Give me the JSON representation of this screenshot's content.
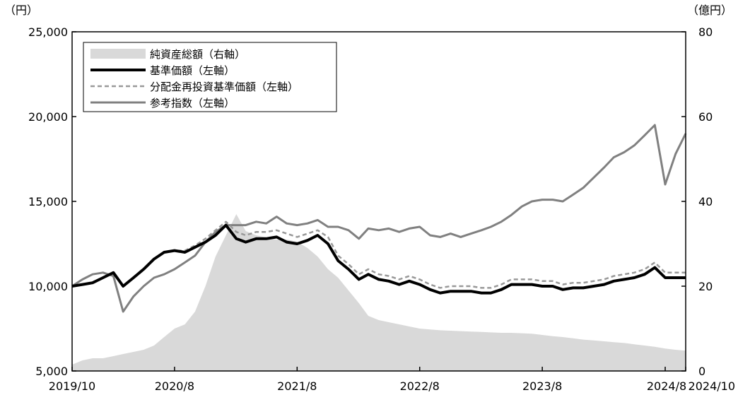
{
  "chart_data": {
    "type": "line",
    "units": {
      "left": "（円）",
      "right": "（億円）"
    },
    "y_left": {
      "range": [
        5000,
        25000
      ],
      "ticks": [
        5000,
        10000,
        15000,
        20000,
        25000
      ],
      "tick_labels": [
        "5,000",
        "10,000",
        "15,000",
        "20,000",
        "25,000"
      ]
    },
    "y_right": {
      "range": [
        0,
        80
      ],
      "ticks": [
        0,
        20,
        40,
        60,
        80
      ],
      "tick_labels": [
        "0",
        "20",
        "40",
        "60",
        "80"
      ]
    },
    "x_ticks": [
      {
        "date": "2019-10",
        "label": "2019/10"
      },
      {
        "date": "2020-08",
        "label": "2020/8"
      },
      {
        "date": "2021-08",
        "label": "2021/8"
      },
      {
        "date": "2022-08",
        "label": "2022/8"
      },
      {
        "date": "2023-08",
        "label": "2023/8"
      },
      {
        "date": "2024-08",
        "label": "2024/8"
      },
      {
        "date": "2024-10",
        "label": "2024/10"
      }
    ],
    "legend_position": "top-left",
    "grid": false,
    "series": [
      {
        "name": "純資産総額（右軸）",
        "type": "area",
        "axis": "right",
        "color": "#d9d9d9",
        "points": [
          [
            "2019-10",
            1.5
          ],
          [
            "2019-11",
            2.5
          ],
          [
            "2019-12",
            3.0
          ],
          [
            "2020-01",
            3.0
          ],
          [
            "2020-02",
            3.5
          ],
          [
            "2020-03",
            4.0
          ],
          [
            "2020-04",
            4.5
          ],
          [
            "2020-05",
            5.0
          ],
          [
            "2020-06",
            6.0
          ],
          [
            "2020-07",
            8.0
          ],
          [
            "2020-08",
            10.0
          ],
          [
            "2020-09",
            11.0
          ],
          [
            "2020-10",
            14.0
          ],
          [
            "2020-11",
            20.0
          ],
          [
            "2020-12",
            27.0
          ],
          [
            "2021-01",
            32.0
          ],
          [
            "2021-02",
            37.0
          ],
          [
            "2021-03",
            33.0
          ],
          [
            "2021-04",
            32.0
          ],
          [
            "2021-05",
            31.5
          ],
          [
            "2021-06",
            31.0
          ],
          [
            "2021-07",
            31.0
          ],
          [
            "2021-08",
            30.5
          ],
          [
            "2021-09",
            29.0
          ],
          [
            "2021-10",
            27.0
          ],
          [
            "2021-11",
            24.0
          ],
          [
            "2021-12",
            22.0
          ],
          [
            "2022-01",
            19.0
          ],
          [
            "2022-02",
            16.0
          ],
          [
            "2022-03",
            13.0
          ],
          [
            "2022-04",
            12.0
          ],
          [
            "2022-05",
            11.5
          ],
          [
            "2022-06",
            11.0
          ],
          [
            "2022-07",
            10.5
          ],
          [
            "2022-08",
            10.0
          ],
          [
            "2022-09",
            9.8
          ],
          [
            "2022-10",
            9.6
          ],
          [
            "2022-11",
            9.5
          ],
          [
            "2022-12",
            9.4
          ],
          [
            "2023-01",
            9.3
          ],
          [
            "2023-02",
            9.2
          ],
          [
            "2023-03",
            9.1
          ],
          [
            "2023-04",
            9.0
          ],
          [
            "2023-05",
            9.0
          ],
          [
            "2023-06",
            8.9
          ],
          [
            "2023-07",
            8.8
          ],
          [
            "2023-08",
            8.5
          ],
          [
            "2023-09",
            8.2
          ],
          [
            "2023-10",
            8.0
          ],
          [
            "2023-11",
            7.7
          ],
          [
            "2023-12",
            7.4
          ],
          [
            "2024-01",
            7.2
          ],
          [
            "2024-02",
            7.0
          ],
          [
            "2024-03",
            6.8
          ],
          [
            "2024-04",
            6.6
          ],
          [
            "2024-05",
            6.3
          ],
          [
            "2024-06",
            6.0
          ],
          [
            "2024-07",
            5.7
          ],
          [
            "2024-08",
            5.3
          ],
          [
            "2024-09",
            5.0
          ],
          [
            "2024-10",
            4.8
          ]
        ]
      },
      {
        "name": "基準価額（左軸）",
        "type": "line",
        "axis": "left",
        "color": "#000000",
        "points": [
          [
            "2019-10",
            10000
          ],
          [
            "2019-11",
            10100
          ],
          [
            "2019-12",
            10200
          ],
          [
            "2020-01",
            10500
          ],
          [
            "2020-02",
            10800
          ],
          [
            "2020-03",
            10000
          ],
          [
            "2020-04",
            10500
          ],
          [
            "2020-05",
            11000
          ],
          [
            "2020-06",
            11600
          ],
          [
            "2020-07",
            12000
          ],
          [
            "2020-08",
            12100
          ],
          [
            "2020-09",
            12000
          ],
          [
            "2020-10",
            12300
          ],
          [
            "2020-11",
            12600
          ],
          [
            "2020-12",
            13000
          ],
          [
            "2021-01",
            13600
          ],
          [
            "2021-02",
            12800
          ],
          [
            "2021-03",
            12600
          ],
          [
            "2021-04",
            12800
          ],
          [
            "2021-05",
            12800
          ],
          [
            "2021-06",
            12900
          ],
          [
            "2021-07",
            12600
          ],
          [
            "2021-08",
            12500
          ],
          [
            "2021-09",
            12700
          ],
          [
            "2021-10",
            13000
          ],
          [
            "2021-11",
            12500
          ],
          [
            "2021-12",
            11500
          ],
          [
            "2022-01",
            11000
          ],
          [
            "2022-02",
            10400
          ],
          [
            "2022-03",
            10700
          ],
          [
            "2022-04",
            10400
          ],
          [
            "2022-05",
            10300
          ],
          [
            "2022-06",
            10100
          ],
          [
            "2022-07",
            10300
          ],
          [
            "2022-08",
            10100
          ],
          [
            "2022-09",
            9800
          ],
          [
            "2022-10",
            9600
          ],
          [
            "2022-11",
            9700
          ],
          [
            "2022-12",
            9700
          ],
          [
            "2023-01",
            9700
          ],
          [
            "2023-02",
            9600
          ],
          [
            "2023-03",
            9600
          ],
          [
            "2023-04",
            9800
          ],
          [
            "2023-05",
            10100
          ],
          [
            "2023-06",
            10100
          ],
          [
            "2023-07",
            10100
          ],
          [
            "2023-08",
            10000
          ],
          [
            "2023-09",
            10000
          ],
          [
            "2023-10",
            9800
          ],
          [
            "2023-11",
            9900
          ],
          [
            "2023-12",
            9900
          ],
          [
            "2024-01",
            10000
          ],
          [
            "2024-02",
            10100
          ],
          [
            "2024-03",
            10300
          ],
          [
            "2024-04",
            10400
          ],
          [
            "2024-05",
            10500
          ],
          [
            "2024-06",
            10700
          ],
          [
            "2024-07",
            11100
          ],
          [
            "2024-08",
            10500
          ],
          [
            "2024-09",
            10500
          ],
          [
            "2024-10",
            10500
          ]
        ]
      },
      {
        "name": "分配金再投資基準価額（左軸）",
        "type": "line",
        "axis": "left",
        "color": "#999999",
        "points": [
          [
            "2019-10",
            10000
          ],
          [
            "2019-11",
            10100
          ],
          [
            "2019-12",
            10200
          ],
          [
            "2020-01",
            10500
          ],
          [
            "2020-02",
            10800
          ],
          [
            "2020-03",
            10000
          ],
          [
            "2020-04",
            10500
          ],
          [
            "2020-05",
            11000
          ],
          [
            "2020-06",
            11600
          ],
          [
            "2020-07",
            12000
          ],
          [
            "2020-08",
            12100
          ],
          [
            "2020-09",
            12100
          ],
          [
            "2020-10",
            12400
          ],
          [
            "2020-11",
            12800
          ],
          [
            "2020-12",
            13300
          ],
          [
            "2021-01",
            13800
          ],
          [
            "2021-02",
            13200
          ],
          [
            "2021-03",
            13000
          ],
          [
            "2021-04",
            13200
          ],
          [
            "2021-05",
            13200
          ],
          [
            "2021-06",
            13300
          ],
          [
            "2021-07",
            13100
          ],
          [
            "2021-08",
            12900
          ],
          [
            "2021-09",
            13100
          ],
          [
            "2021-10",
            13300
          ],
          [
            "2021-11",
            12900
          ],
          [
            "2021-12",
            11800
          ],
          [
            "2022-01",
            11300
          ],
          [
            "2022-02",
            10700
          ],
          [
            "2022-03",
            11000
          ],
          [
            "2022-04",
            10700
          ],
          [
            "2022-05",
            10600
          ],
          [
            "2022-06",
            10400
          ],
          [
            "2022-07",
            10600
          ],
          [
            "2022-08",
            10400
          ],
          [
            "2022-09",
            10100
          ],
          [
            "2022-10",
            9900
          ],
          [
            "2022-11",
            10000
          ],
          [
            "2022-12",
            10000
          ],
          [
            "2023-01",
            10000
          ],
          [
            "2023-02",
            9900
          ],
          [
            "2023-03",
            9900
          ],
          [
            "2023-04",
            10100
          ],
          [
            "2023-05",
            10400
          ],
          [
            "2023-06",
            10400
          ],
          [
            "2023-07",
            10400
          ],
          [
            "2023-08",
            10300
          ],
          [
            "2023-09",
            10300
          ],
          [
            "2023-10",
            10100
          ],
          [
            "2023-11",
            10200
          ],
          [
            "2023-12",
            10200
          ],
          [
            "2024-01",
            10300
          ],
          [
            "2024-02",
            10400
          ],
          [
            "2024-03",
            10600
          ],
          [
            "2024-04",
            10700
          ],
          [
            "2024-05",
            10800
          ],
          [
            "2024-06",
            11000
          ],
          [
            "2024-07",
            11400
          ],
          [
            "2024-08",
            10800
          ],
          [
            "2024-09",
            10800
          ],
          [
            "2024-10",
            10800
          ]
        ]
      },
      {
        "name": "参考指数（左軸）",
        "type": "line",
        "axis": "left",
        "color": "#808080",
        "points": [
          [
            "2019-10",
            10000
          ],
          [
            "2019-11",
            10400
          ],
          [
            "2019-12",
            10700
          ],
          [
            "2020-01",
            10800
          ],
          [
            "2020-02",
            10600
          ],
          [
            "2020-03",
            8500
          ],
          [
            "2020-04",
            9400
          ],
          [
            "2020-05",
            10000
          ],
          [
            "2020-06",
            10500
          ],
          [
            "2020-07",
            10700
          ],
          [
            "2020-08",
            11000
          ],
          [
            "2020-09",
            11400
          ],
          [
            "2020-10",
            11800
          ],
          [
            "2020-11",
            12600
          ],
          [
            "2020-12",
            13200
          ],
          [
            "2021-01",
            13600
          ],
          [
            "2021-02",
            13600
          ],
          [
            "2021-03",
            13600
          ],
          [
            "2021-04",
            13800
          ],
          [
            "2021-05",
            13700
          ],
          [
            "2021-06",
            14100
          ],
          [
            "2021-07",
            13700
          ],
          [
            "2021-08",
            13600
          ],
          [
            "2021-09",
            13700
          ],
          [
            "2021-10",
            13900
          ],
          [
            "2021-11",
            13500
          ],
          [
            "2021-12",
            13500
          ],
          [
            "2022-01",
            13300
          ],
          [
            "2022-02",
            12800
          ],
          [
            "2022-03",
            13400
          ],
          [
            "2022-04",
            13300
          ],
          [
            "2022-05",
            13400
          ],
          [
            "2022-06",
            13200
          ],
          [
            "2022-07",
            13400
          ],
          [
            "2022-08",
            13500
          ],
          [
            "2022-09",
            13000
          ],
          [
            "2022-10",
            12900
          ],
          [
            "2022-11",
            13100
          ],
          [
            "2022-12",
            12900
          ],
          [
            "2023-01",
            13100
          ],
          [
            "2023-02",
            13300
          ],
          [
            "2023-03",
            13500
          ],
          [
            "2023-04",
            13800
          ],
          [
            "2023-05",
            14200
          ],
          [
            "2023-06",
            14700
          ],
          [
            "2023-07",
            15000
          ],
          [
            "2023-08",
            15100
          ],
          [
            "2023-09",
            15100
          ],
          [
            "2023-10",
            15000
          ],
          [
            "2023-11",
            15400
          ],
          [
            "2023-12",
            15800
          ],
          [
            "2024-01",
            16400
          ],
          [
            "2024-02",
            17000
          ],
          [
            "2024-03",
            17600
          ],
          [
            "2024-04",
            17900
          ],
          [
            "2024-05",
            18300
          ],
          [
            "2024-06",
            18900
          ],
          [
            "2024-07",
            19500
          ],
          [
            "2024-08",
            16000
          ],
          [
            "2024-09",
            17800
          ],
          [
            "2024-10",
            19000
          ]
        ]
      }
    ]
  }
}
